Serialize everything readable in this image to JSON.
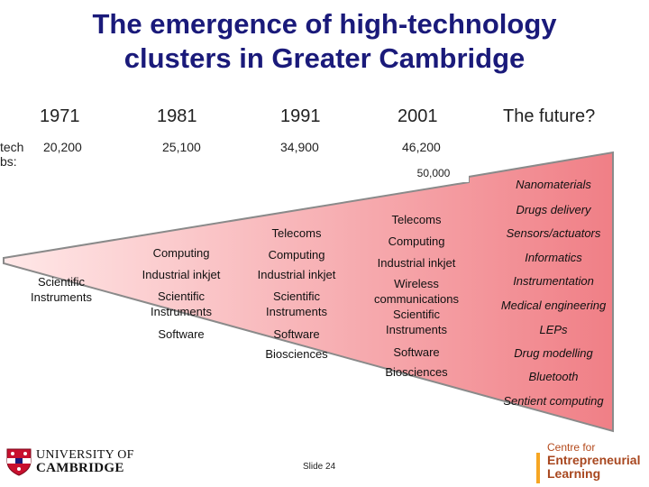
{
  "title_lines": [
    "The emergence of high-technology",
    "clusters in Greater Cambridge"
  ],
  "side_label": [
    "tech",
    "bs:"
  ],
  "years": [
    "1971",
    "1981",
    "1991",
    "2001",
    "The future?"
  ],
  "jobs": [
    "20,200",
    "25,100",
    "34,900",
    "46,200"
  ],
  "future_jobs": "50,000",
  "clusters": {
    "y1971": [
      "Scientific\nInstruments"
    ],
    "y1981": [
      "Computing",
      "Industrial inkjet",
      "Scientific\nInstruments",
      "Software"
    ],
    "y1991": [
      "Telecoms",
      "Computing",
      "Industrial inkjet",
      "Scientific\nInstruments",
      "Software",
      "Biosciences"
    ],
    "y2001": [
      "Telecoms",
      "Computing",
      "Industrial inkjet",
      "Wireless\ncommunications",
      "Scientific\nInstruments",
      "Software",
      "Biosciences"
    ],
    "future": [
      "Nanomaterials",
      "Drugs delivery",
      "Sensors/actuators",
      "Informatics",
      "Instrumentation",
      "Medical engineering",
      "LEPs",
      "Drug modelling",
      "Bluetooth",
      "Sentient computing"
    ]
  },
  "colors": {
    "title": "#1a1a7a",
    "wedge_light": "#ffe8e8",
    "wedge_dark": "#f07f86",
    "wedge_edge": "#8a8a8a"
  },
  "footer": {
    "university_line1": "UNIVERSITY OF",
    "university_line2": "CAMBRIDGE",
    "slide": "Slide 24",
    "centre_line1": "Centre for",
    "centre_line2": "Entrepreneurial",
    "centre_line3": "Learning"
  }
}
